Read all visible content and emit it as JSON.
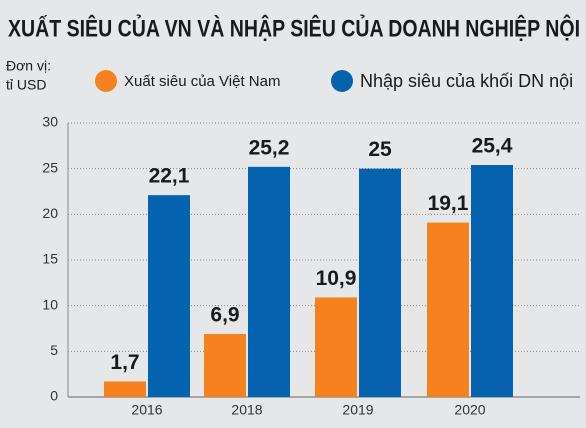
{
  "chart_data": {
    "type": "bar",
    "title": "XUẤT SIÊU CỦA VN VÀ NHẬP SIÊU CỦA DOANH NGHIỆP NỘI",
    "unit_label": [
      "Đơn vị:",
      "tỉ USD"
    ],
    "categories": [
      "2016",
      "2018",
      "2019",
      "2020"
    ],
    "series": [
      {
        "name": "Xuất siêu của Việt Nam",
        "color": "#f5821f",
        "values": [
          1.7,
          6.9,
          10.9,
          19.1
        ],
        "value_labels": [
          "1,7",
          "6,9",
          "10,9",
          "19,1"
        ]
      },
      {
        "name": "Nhập siêu của khối DN nội",
        "color": "#0562ae",
        "values": [
          22.1,
          25.2,
          25,
          25.4
        ],
        "value_labels": [
          "22,1",
          "25,2",
          "25",
          "25,4"
        ]
      }
    ],
    "ylim": [
      0,
      30
    ],
    "yticks": [
      0,
      5,
      10,
      15,
      20,
      25,
      30
    ],
    "grid": true
  }
}
